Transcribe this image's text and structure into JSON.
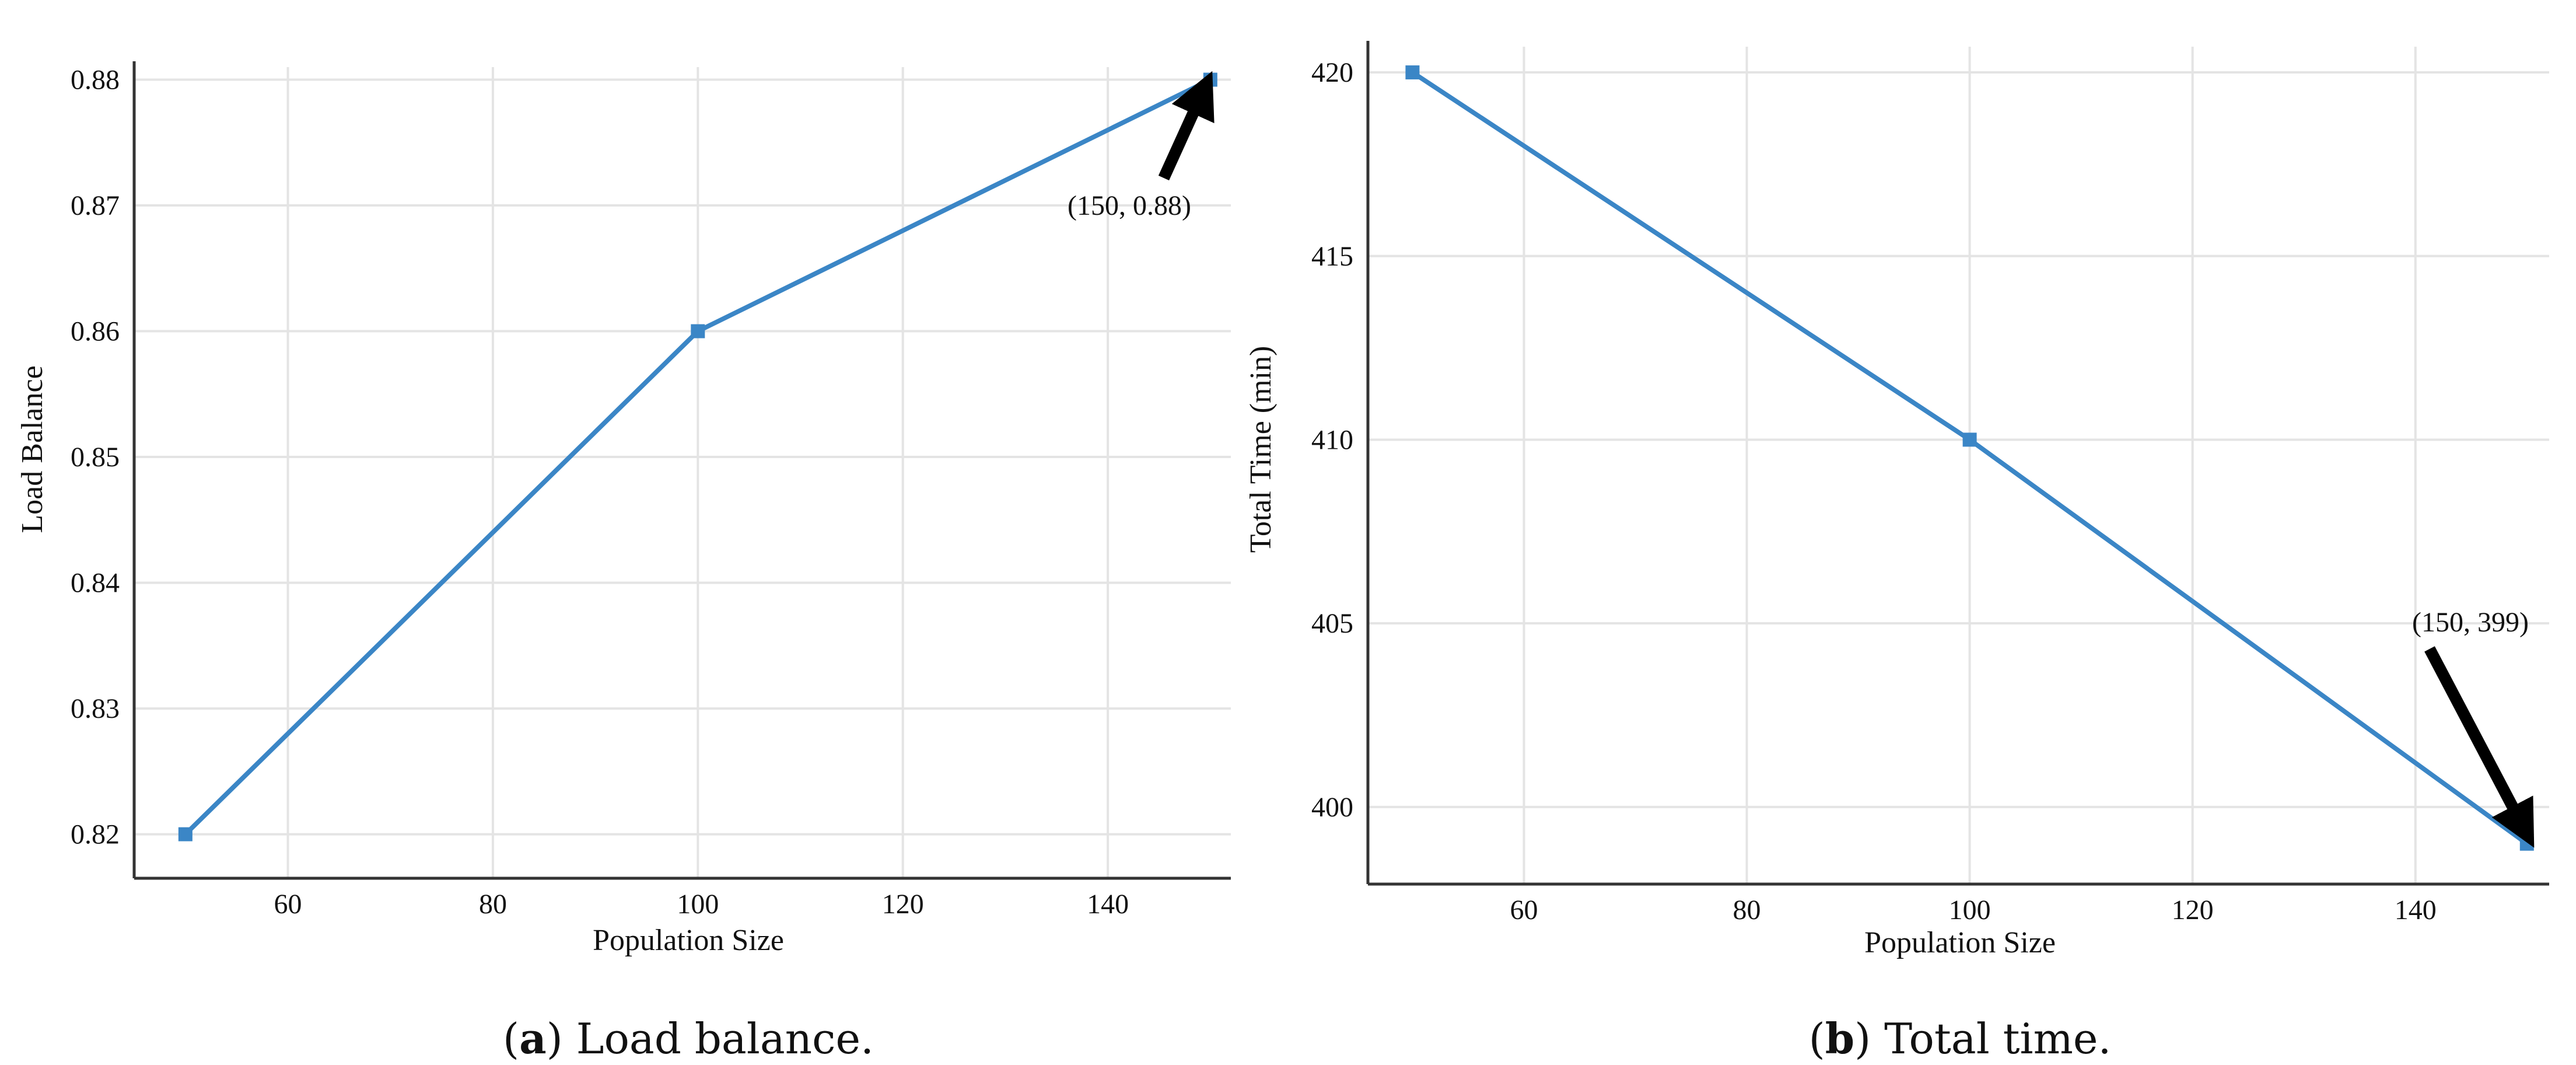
{
  "chart_data": [
    {
      "type": "line",
      "xlabel": "Population Size",
      "ylabel": "Load Balance",
      "xlim": [
        45,
        152
      ],
      "ylim": [
        0.8165,
        0.881
      ],
      "xticks": [
        60,
        80,
        100,
        120,
        140
      ],
      "yticks": [
        0.82,
        0.83,
        0.84,
        0.85,
        0.86,
        0.87,
        0.88
      ],
      "grid": true,
      "series": [
        {
          "x": [
            50,
            100,
            150
          ],
          "y": [
            0.82,
            0.86,
            0.88
          ],
          "color": "#3b86c6"
        }
      ],
      "annotation": {
        "text": "(150, 0.88)",
        "x": 150,
        "y": 0.88
      },
      "caption": {
        "tag": "a",
        "text": "Load balance."
      }
    },
    {
      "type": "line",
      "xlabel": "Population Size",
      "ylabel": "Total Time (min)",
      "xlim": [
        46,
        152
      ],
      "ylim": [
        397.9,
        420.7
      ],
      "xticks": [
        60,
        80,
        100,
        120,
        140
      ],
      "yticks": [
        400,
        405,
        410,
        415,
        420
      ],
      "grid": true,
      "series": [
        {
          "x": [
            50,
            100,
            150
          ],
          "y": [
            420,
            410,
            399
          ],
          "color": "#3b86c6"
        }
      ],
      "annotation": {
        "text": "(150, 399)",
        "x": 150,
        "y": 399
      },
      "caption": {
        "tag": "b",
        "text": "Total time."
      }
    }
  ]
}
